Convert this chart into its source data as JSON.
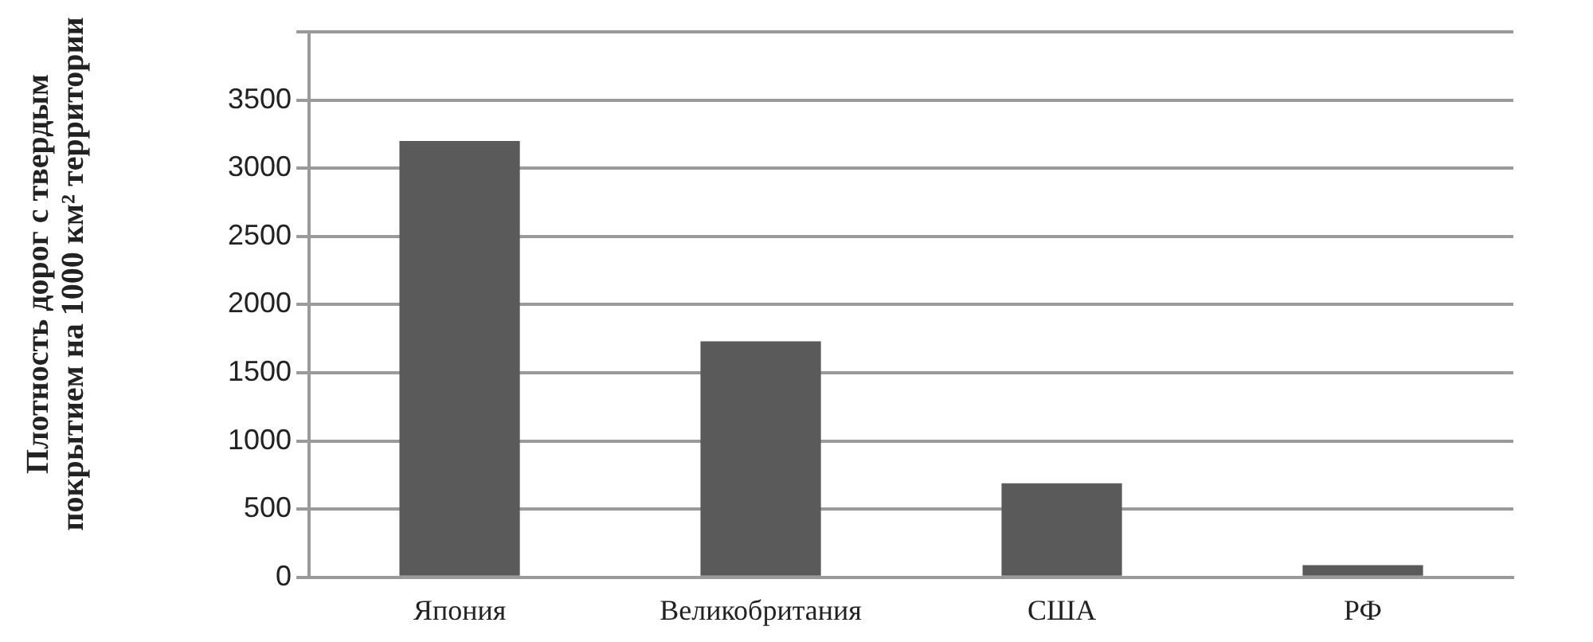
{
  "chart_data": {
    "type": "bar",
    "ylabel": "Плотность дорог с твердым покрытием на 1000 км² территории",
    "categories": [
      "Япония",
      "Великобритания",
      "США",
      "РФ"
    ],
    "values": [
      3200,
      1730,
      690,
      90
    ],
    "color": "#5a5a5a",
    "ylim": [
      0,
      4000
    ],
    "yticks": [
      0,
      500,
      1000,
      1500,
      2000,
      2500,
      3000,
      3500,
      {
        "value": 4000,
        "label": null
      }
    ],
    "grid": "y",
    "legend": false
  }
}
